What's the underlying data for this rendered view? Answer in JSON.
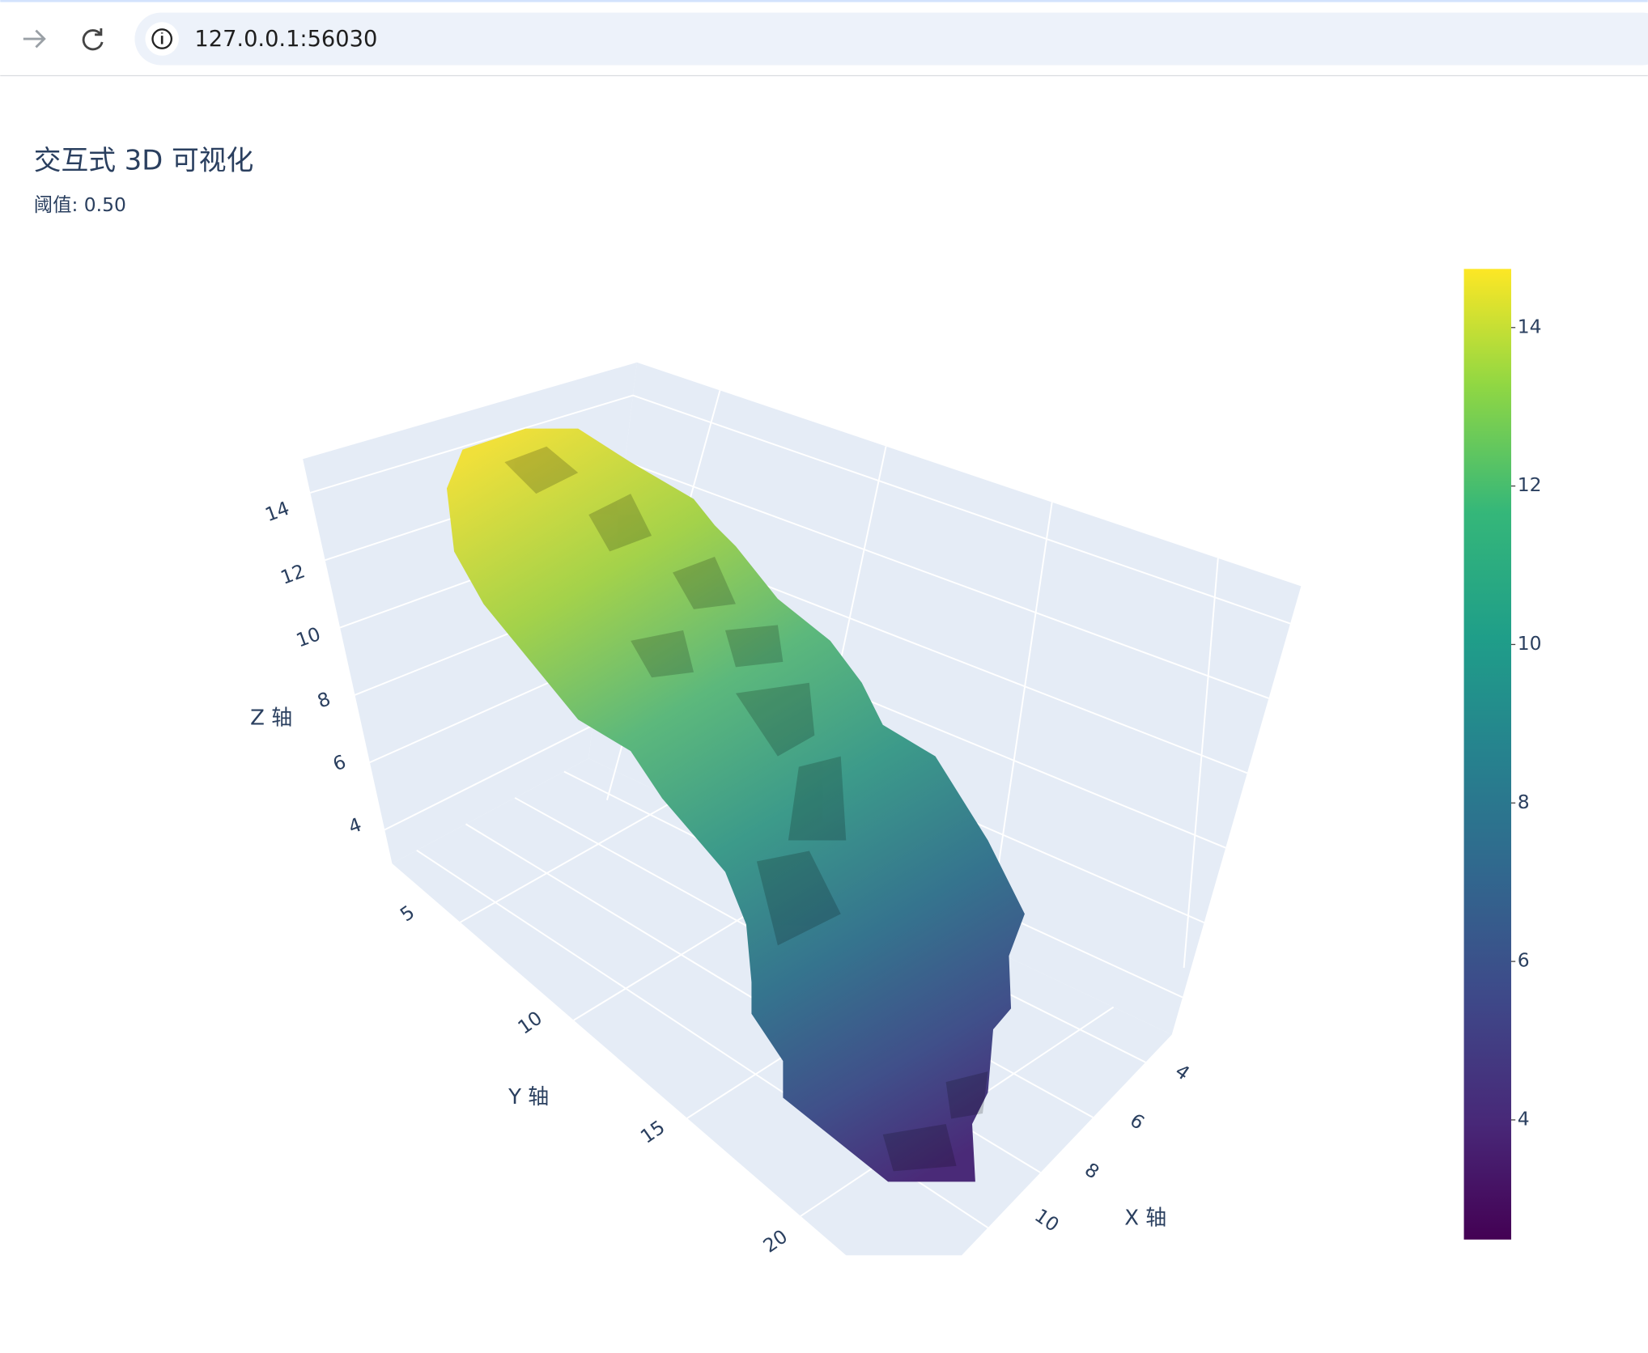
{
  "browser": {
    "url": "127.0.0.1:56030"
  },
  "chart_data": {
    "type": "isosurface",
    "title": "交互式 3D 可视化",
    "subtitle": "阈值: 0.50",
    "x_label": "X 轴",
    "y_label": "Y 轴",
    "z_label": "Z 轴",
    "xlim": [
      3,
      11
    ],
    "xticks": [
      4,
      6,
      8,
      10
    ],
    "ylim": [
      2,
      22
    ],
    "yticks": [
      5,
      10,
      15,
      20
    ],
    "zlim": [
      3,
      15
    ],
    "zticks": [
      4,
      6,
      8,
      10,
      12,
      14
    ],
    "colorbar": {
      "lim": [
        2.49,
        14.74
      ],
      "ticks": [
        4,
        6,
        8,
        10,
        12,
        14
      ]
    }
  }
}
